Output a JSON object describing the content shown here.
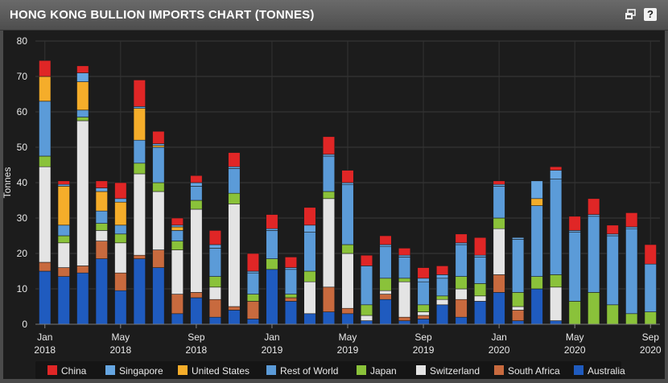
{
  "window": {
    "title": "HONG KONG BULLION IMPORTS CHART (TONNES)",
    "help_label": "?",
    "restore_icon": "restore-window-icon"
  },
  "chart_data": {
    "type": "bar",
    "stacked": true,
    "ylabel": "Tonnes",
    "ylim": [
      0,
      80
    ],
    "yticks": [
      0,
      10,
      20,
      30,
      40,
      50,
      60,
      70,
      80
    ],
    "grid": true,
    "legend_position": "bottom",
    "categories": [
      "Jan 2018",
      "Feb 2018",
      "Mar 2018",
      "Apr 2018",
      "May 2018",
      "Jun 2018",
      "Jul 2018",
      "Aug 2018",
      "Sep 2018",
      "Oct 2018",
      "Nov 2018",
      "Dec 2018",
      "Jan 2019",
      "Feb 2019",
      "Mar 2019",
      "Apr 2019",
      "May 2019",
      "Jun 2019",
      "Jul 2019",
      "Aug 2019",
      "Sep 2019",
      "Oct 2019",
      "Nov 2019",
      "Dec 2019",
      "Jan 2020",
      "Feb 2020",
      "Mar 2020",
      "Apr 2020",
      "May 2020",
      "Jun 2020",
      "Jul 2020",
      "Aug 2020",
      "Sep 2020"
    ],
    "xtick_labels": [
      {
        "index": 0,
        "line1": "Jan",
        "line2": "2018"
      },
      {
        "index": 4,
        "line1": "May",
        "line2": "2018"
      },
      {
        "index": 8,
        "line1": "Sep",
        "line2": "2018"
      },
      {
        "index": 12,
        "line1": "Jan",
        "line2": "2019"
      },
      {
        "index": 16,
        "line1": "May",
        "line2": "2019"
      },
      {
        "index": 20,
        "line1": "Sep",
        "line2": "2019"
      },
      {
        "index": 24,
        "line1": "Jan",
        "line2": "2020"
      },
      {
        "index": 28,
        "line1": "May",
        "line2": "2020"
      },
      {
        "index": 32,
        "line1": "Sep",
        "line2": "2020"
      }
    ],
    "series": [
      {
        "name": "Australia",
        "color": "#1f5bbf",
        "values": [
          15,
          13.5,
          14.5,
          18.5,
          9.5,
          18.5,
          16,
          3,
          7.5,
          2,
          4,
          1.5,
          15.5,
          6.5,
          3,
          3.5,
          3,
          1,
          7,
          1,
          1.5,
          5.5,
          2,
          6.5,
          9,
          1,
          10,
          1,
          0,
          0,
          0,
          0,
          0
        ]
      },
      {
        "name": "South Africa",
        "color": "#c86a3e",
        "values": [
          2.5,
          2.5,
          2,
          5,
          5,
          1,
          5,
          5.5,
          1.5,
          5,
          1,
          5,
          0,
          1,
          0,
          7,
          1.5,
          0,
          1.5,
          1,
          1,
          0,
          5,
          0,
          5,
          3,
          0,
          0,
          0,
          0,
          0,
          0,
          0
        ]
      },
      {
        "name": "Switzerland",
        "color": "#e4e4e4",
        "values": [
          27,
          7,
          41,
          3,
          8.5,
          23,
          16.5,
          12.5,
          23.5,
          3.5,
          29,
          0,
          0,
          0,
          9,
          25,
          15.5,
          1.5,
          1,
          10,
          1,
          1.5,
          3,
          1.5,
          13,
          1,
          0,
          9.5,
          0,
          0,
          0,
          0,
          0
        ]
      },
      {
        "name": "Japan",
        "color": "#8ac23a",
        "values": [
          3,
          2,
          1,
          2,
          2.5,
          3,
          2.5,
          2.5,
          2.5,
          3,
          3,
          2,
          3,
          1,
          3,
          2,
          2.5,
          3,
          3.5,
          1,
          2,
          1,
          3.5,
          3.5,
          3,
          4,
          3.5,
          3.5,
          6.5,
          9,
          5.5,
          3,
          3.5
        ]
      },
      {
        "name": "Rest of World",
        "color": "#5b9bd8",
        "values": [
          15.5,
          3,
          2,
          3.5,
          2.5,
          6.5,
          10,
          3,
          4,
          8,
          7,
          6,
          8,
          7,
          11,
          10,
          17,
          11,
          9,
          6,
          6.5,
          5,
          9,
          7.5,
          9,
          15,
          20,
          27,
          19.5,
          21.5,
          19.5,
          24,
          13.5
        ]
      },
      {
        "name": "United States",
        "color": "#f5ad2a",
        "values": [
          7,
          11,
          8,
          5.5,
          6.5,
          9,
          0.5,
          1,
          0,
          0,
          0,
          0,
          0,
          0,
          0,
          0,
          0,
          0,
          0,
          0,
          0,
          0,
          0,
          0,
          0,
          0,
          2,
          0,
          0,
          0,
          0,
          0,
          0
        ]
      },
      {
        "name": "Singapore",
        "color": "#66a6e2",
        "values": [
          0,
          0.5,
          2.5,
          1,
          1,
          0.5,
          0.5,
          0.5,
          1,
          1,
          0.5,
          0.5,
          0.5,
          0.5,
          2,
          0.5,
          0.5,
          0,
          0.5,
          0.5,
          1,
          1,
          0.5,
          0.5,
          0.5,
          0.5,
          5,
          2.5,
          0.5,
          0.5,
          0.5,
          0.5,
          0
        ]
      },
      {
        "name": "China",
        "color": "#e02626",
        "values": [
          4.5,
          1,
          2,
          2,
          4.5,
          7.5,
          3.5,
          2,
          2,
          4,
          4,
          5,
          4,
          3,
          5,
          5,
          3.5,
          3,
          2.5,
          2,
          3,
          2.5,
          2.5,
          5,
          1,
          0,
          0,
          1,
          4,
          4.5,
          2.5,
          4,
          5.5
        ]
      }
    ]
  }
}
